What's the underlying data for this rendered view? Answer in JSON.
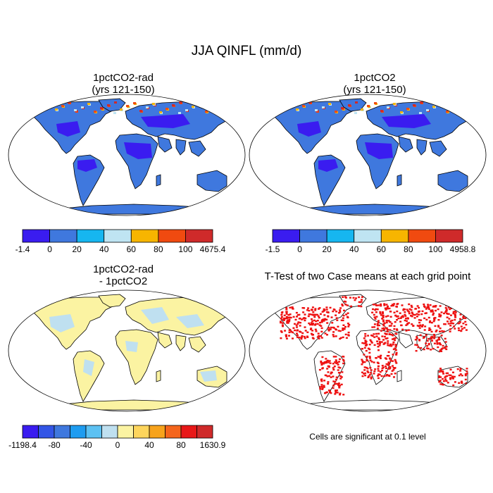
{
  "title": "JJA QINFL (mm/d)",
  "panels": [
    {
      "title_line1": "1pctCO2-rad",
      "title_line2": "(yrs 121-150)",
      "colorbar": {
        "colors": [
          "#3a1cf0",
          "#3f78de",
          "#16b6f0",
          "#bfe4f2",
          "#f7b500",
          "#f04a10",
          "#cf2a2a"
        ],
        "labels": [
          "-1.4",
          "0",
          "20",
          "40",
          "60",
          "80",
          "100",
          "4675.4"
        ]
      }
    },
    {
      "title_line1": "1pctCO2",
      "title_line2": "(yrs 121-150)",
      "colorbar": {
        "colors": [
          "#3a1cf0",
          "#3f78de",
          "#16b6f0",
          "#bfe4f2",
          "#f7b500",
          "#f04a10",
          "#cf2a2a"
        ],
        "labels": [
          "-1.5",
          "0",
          "20",
          "40",
          "60",
          "80",
          "100",
          "4958.8"
        ]
      }
    },
    {
      "title_line1": "1pctCO2-rad",
      "title_line2": "- 1pctCO2",
      "colorbar": {
        "colors": [
          "#3a1cf0",
          "#3355e6",
          "#3f78de",
          "#1e9cf0",
          "#5cc1f2",
          "#bfe0f0",
          "#fbf3a2",
          "#fdd55c",
          "#f7a31c",
          "#f4651c",
          "#e81818",
          "#cf2a2a"
        ],
        "labels": [
          "-1198.4",
          "-80",
          "-40",
          "0",
          "40",
          "80",
          "1630.9"
        ]
      }
    },
    {
      "title_line1": "T-Test of two Case means at each grid point",
      "note": "Cells are significant at 0.1 level"
    }
  ],
  "map_colors": {
    "panel1_land": "#3f78de",
    "panel1_tropics": "#3a1cf0",
    "panel2_land": "#3f78de",
    "panel2_tropics": "#3a1cf0",
    "panel3_land": "#fbf3a2",
    "panel3_patch": "#bfe0f0",
    "panel4_sig": "#ee1111",
    "coast": "#000000"
  }
}
